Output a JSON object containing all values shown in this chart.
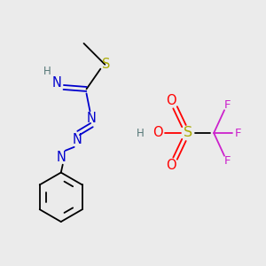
{
  "bg_color": "#EBEBEB",
  "colors": {
    "C": "#000000",
    "N": "#0000CD",
    "S": "#AAAA00",
    "O": "#FF0000",
    "F": "#CC22CC",
    "H": "#557777"
  },
  "font_size": 8.5,
  "lw": 1.3
}
